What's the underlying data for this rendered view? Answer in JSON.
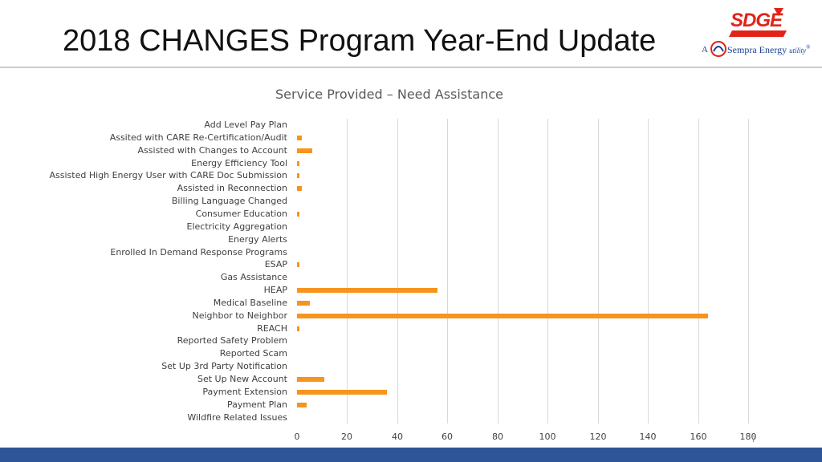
{
  "slide": {
    "title": "2018 CHANGES Program Year-End Update",
    "page_number": "7"
  },
  "logo": {
    "brand": "SDGE",
    "prefix": "A",
    "company": "Sempra Energy",
    "suffix": "utility",
    "mark": "®"
  },
  "colors": {
    "bar": "#f7941d",
    "footer": "#2e5597",
    "brand_red": "#e2231a",
    "brand_blue": "#1b3f94"
  },
  "chart_data": {
    "type": "bar",
    "orientation": "horizontal",
    "title": "Service Provided – Need Assistance",
    "xlim": [
      0,
      180
    ],
    "xticks": [
      0,
      20,
      40,
      60,
      80,
      100,
      120,
      140,
      160,
      180
    ],
    "grid": true,
    "categories": [
      "Add Level Pay Plan",
      "Assited with CARE Re-Certification/Audit",
      "Assisted with Changes to Account",
      "Energy Efficiency Tool",
      "Assisted High Energy User with CARE Doc Submission",
      "Assisted in Reconnection",
      "Billing Language Changed",
      "Consumer Education",
      "Electricity Aggregation",
      "Energy Alerts",
      "Enrolled In Demand Response Programs",
      "ESAP",
      "Gas Assistance",
      "HEAP",
      "Medical Baseline",
      "Neighbor to Neighbor",
      "REACH",
      "Reported Safety Problem",
      "Reported Scam",
      "Set Up 3rd Party Notification",
      "Set Up New Account",
      "Payment Extension",
      "Payment Plan",
      "Wildfire Related Issues"
    ],
    "values": [
      0,
      2,
      6,
      1,
      1,
      2,
      0,
      1,
      0,
      0,
      0,
      1,
      0,
      56,
      5,
      164,
      1,
      0,
      0,
      0,
      11,
      36,
      4,
      0
    ]
  }
}
